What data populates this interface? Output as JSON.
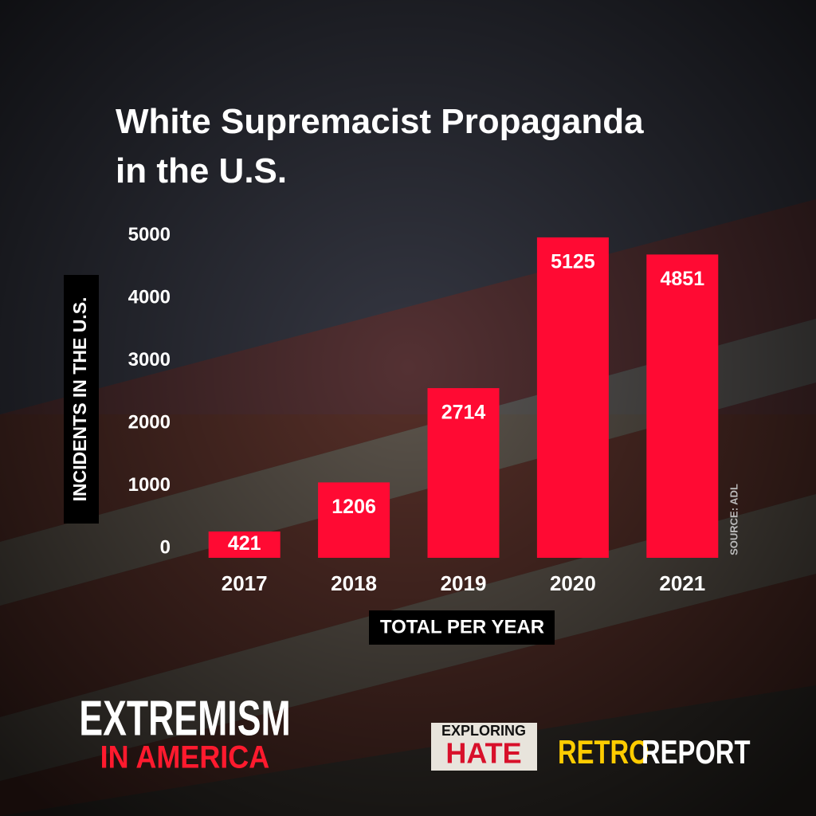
{
  "chart_data": {
    "type": "bar",
    "title": "White Supremacist Propaganda in the U.S.",
    "y_label": "INCIDENTS IN THE U.S.",
    "x_label": "TOTAL PER YEAR",
    "source": "SOURCE: ADL",
    "categories": [
      "2017",
      "2018",
      "2019",
      "2020",
      "2021"
    ],
    "values": [
      421,
      1206,
      2714,
      5125,
      4851
    ],
    "color": "#ff0a33",
    "ylim": [
      0,
      5200
    ],
    "yticks": [
      0,
      1000,
      2000,
      3000,
      4000,
      5000
    ],
    "grid": false
  },
  "branding": {
    "show_line1": "EXTREMISM",
    "show_line2": "IN AMERICA",
    "partner_line1": "EXPLORING",
    "partner_line2": "HATE",
    "org_part1": "RETRO",
    "org_part2": "REPORT"
  }
}
